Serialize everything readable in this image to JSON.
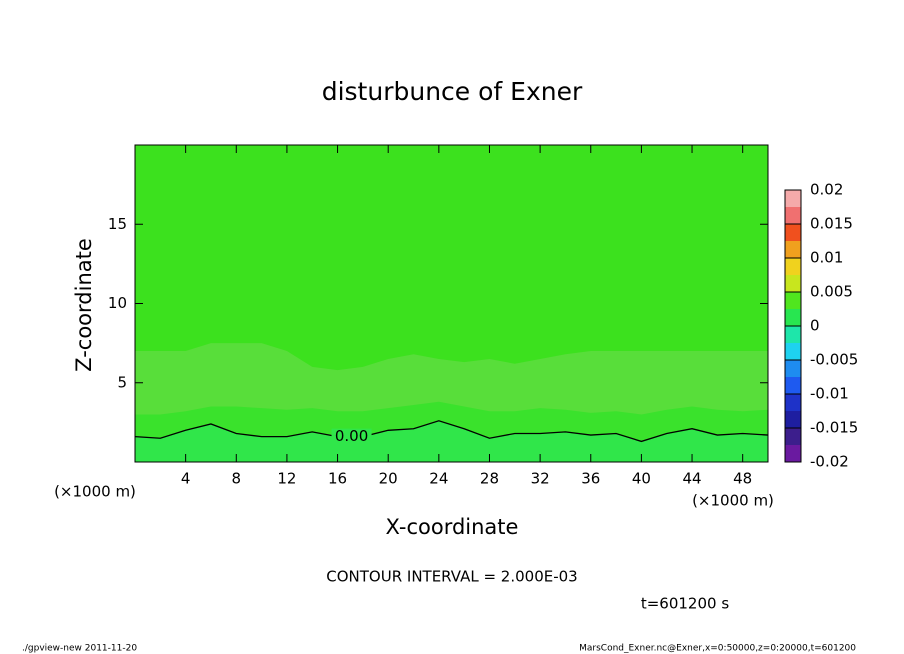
{
  "chart_data": {
    "type": "contour",
    "title": "disturbunce of Exner",
    "xlabel": "X-coordinate",
    "ylabel": "Z-coordinate",
    "x_unit": "(×1000 m)",
    "y_unit": "(×1000 m)",
    "xlim": [
      0,
      50
    ],
    "ylim": [
      0,
      20
    ],
    "xticks": [
      4,
      8,
      12,
      16,
      20,
      24,
      28,
      32,
      36,
      40,
      44,
      48
    ],
    "yticks": [
      5,
      10,
      15
    ],
    "background_color": "#3ce11e",
    "x": [
      0,
      2,
      4,
      6,
      8,
      10,
      12,
      14,
      16,
      18,
      20,
      22,
      24,
      26,
      28,
      30,
      32,
      34,
      36,
      38,
      40,
      42,
      44,
      46,
      48,
      50
    ],
    "fill_bands": [
      {
        "color": "#58de3a",
        "y_top": [
          7,
          7,
          7,
          7.5,
          7.5,
          7.5,
          7,
          6,
          5.8,
          6,
          6.5,
          6.8,
          6.5,
          6.3,
          6.5,
          6.2,
          6.5,
          6.8,
          7,
          7,
          7,
          7,
          7,
          7,
          7,
          7
        ]
      },
      {
        "color": "#3ae22c",
        "y_top": [
          3,
          3,
          3.2,
          3.5,
          3.5,
          3.4,
          3.3,
          3.4,
          3.2,
          3.2,
          3.4,
          3.6,
          3.8,
          3.5,
          3.2,
          3.2,
          3.4,
          3.3,
          3.1,
          3.2,
          3,
          3.3,
          3.5,
          3.3,
          3.2,
          3.3
        ]
      }
    ],
    "contour_line": {
      "label": "0.00",
      "fill_below": "#30e64a",
      "y": [
        1.6,
        1.5,
        2,
        2.4,
        1.8,
        1.6,
        1.6,
        1.9,
        1.6,
        1.6,
        2,
        2.1,
        2.6,
        2.1,
        1.5,
        1.8,
        1.8,
        1.9,
        1.7,
        1.8,
        1.3,
        1.8,
        2.1,
        1.7,
        1.8,
        1.7
      ]
    },
    "colorbar": {
      "lim": [
        -0.02,
        0.02
      ],
      "ticks": [
        0.02,
        0.015,
        0.01,
        0.005,
        0,
        -0.005,
        -0.01,
        -0.015,
        -0.02
      ],
      "colors": [
        "#6a1aa0",
        "#3c1e8c",
        "#1e1ea0",
        "#1e32c8",
        "#1e5af0",
        "#1e8cf0",
        "#1ed2f0",
        "#1ee6aa",
        "#28e650",
        "#50e61e",
        "#c8e61e",
        "#f0d21e",
        "#f0a01e",
        "#f0501e",
        "#f07070",
        "#f5aaaa"
      ]
    },
    "contour_interval": "CONTOUR INTERVAL = 2.000E-03",
    "time_label": "t=601200 s",
    "footer_left": "./gpview-new   2011-11-20",
    "footer_right": "MarsCond_Exner.nc@Exner,x=0:50000,z=0:20000,t=601200"
  }
}
